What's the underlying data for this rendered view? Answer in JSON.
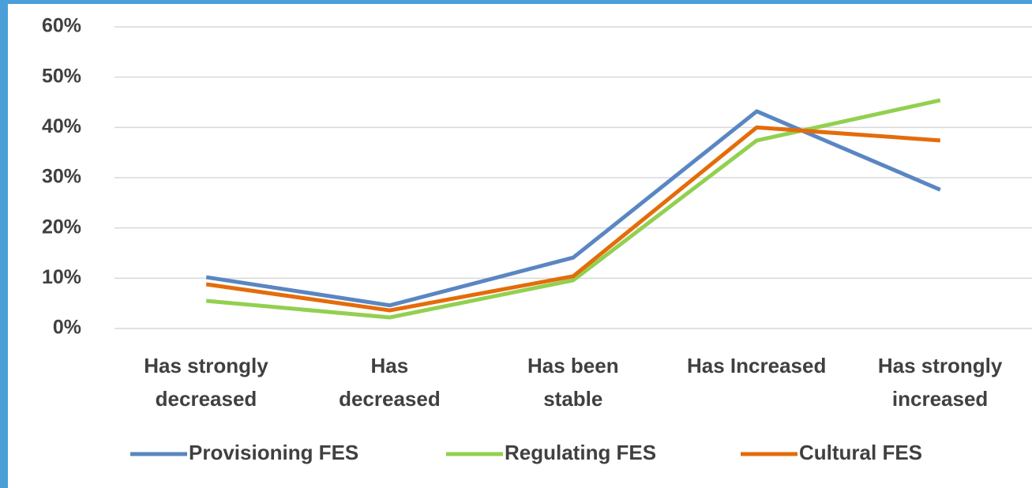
{
  "chart_data": {
    "type": "line",
    "categories": [
      "Has strongly\ndecreased",
      "Has\ndecreased",
      "Has been\nstable",
      "Has Increased",
      "Has strongly\nincreased"
    ],
    "series": [
      {
        "name": "Provisioning FES",
        "color": "#5a86c2",
        "values": [
          10.2,
          4.6,
          14.1,
          43.2,
          27.6
        ]
      },
      {
        "name": "Regulating FES",
        "color": "#92d050",
        "values": [
          5.5,
          2.2,
          9.6,
          37.4,
          45.4
        ]
      },
      {
        "name": "Cultural FES",
        "color": "#e46c0a",
        "values": [
          8.8,
          3.6,
          10.4,
          40,
          37.4
        ]
      }
    ],
    "ylim": [
      0,
      60
    ],
    "yticks": [
      {
        "value": 0,
        "label": "0%"
      },
      {
        "value": 10,
        "label": "10%"
      },
      {
        "value": 20,
        "label": "20%"
      },
      {
        "value": 30,
        "label": "30%"
      },
      {
        "value": 40,
        "label": "40%"
      },
      {
        "value": 50,
        "label": "50%"
      },
      {
        "value": 60,
        "label": "60%"
      }
    ],
    "grid": true,
    "legend": "bottom"
  }
}
